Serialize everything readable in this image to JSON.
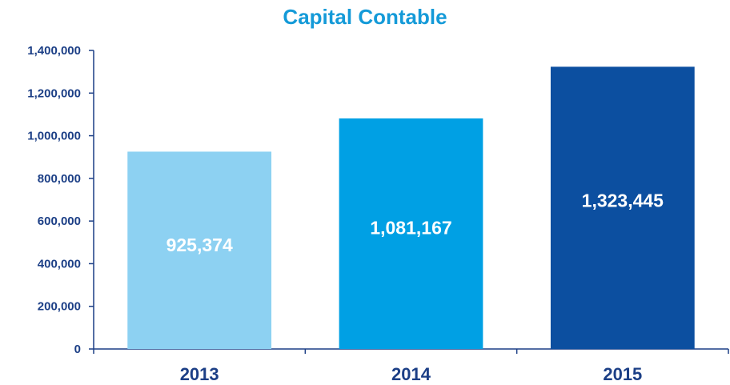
{
  "chart_data": {
    "type": "bar",
    "title": "Capital Contable",
    "categories": [
      "2013",
      "2014",
      "2015"
    ],
    "values": [
      925374,
      1081167,
      1323445
    ],
    "value_labels": [
      "925,374",
      "1,081,167",
      "1,323,445"
    ],
    "colors": [
      "#8dd1f2",
      "#00a0e4",
      "#0c4fa0"
    ],
    "ylim": [
      0,
      1400000
    ],
    "yticks": [
      0,
      200000,
      400000,
      600000,
      800000,
      1000000,
      1200000,
      1400000
    ],
    "ytick_labels": [
      "0",
      "200,000",
      "400,000",
      "600,000",
      "800,000",
      "1,000,000",
      "1,200,000",
      "1,400,000"
    ],
    "xlabel": "",
    "ylabel": "",
    "grid": false,
    "legend": "none"
  }
}
